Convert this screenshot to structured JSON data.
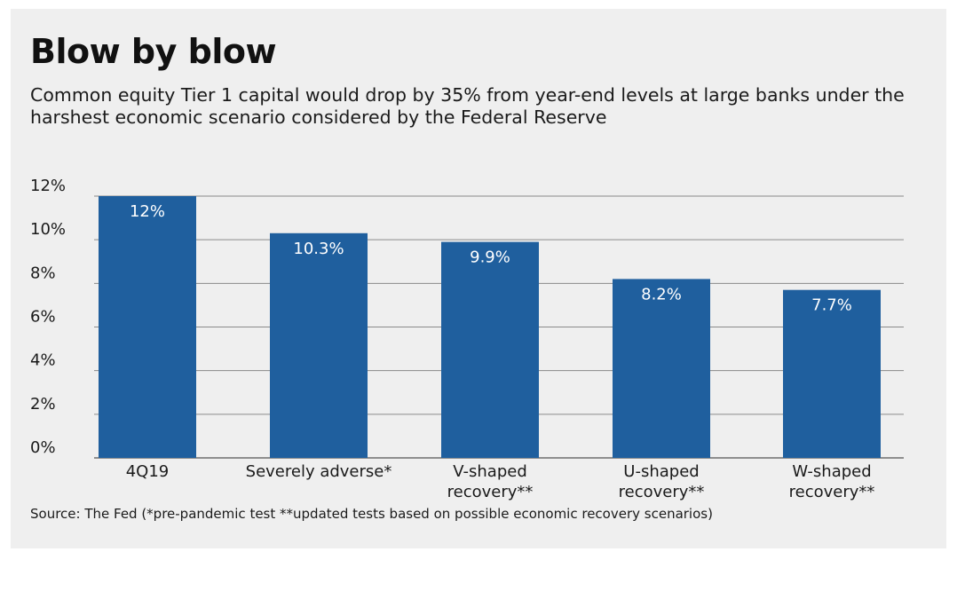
{
  "chart_data": {
    "type": "bar",
    "title": "Blow by blow",
    "subtitle": "Common equity Tier 1 capital would drop by 35% from year-end levels at large banks under the harshest economic scenario considered by the Federal Reserve",
    "categories": [
      [
        "4Q19"
      ],
      [
        "Severely adverse*"
      ],
      [
        "V-shaped",
        "recovery**"
      ],
      [
        "U-shaped",
        "recovery**"
      ],
      [
        "W-shaped",
        "recovery**"
      ]
    ],
    "values": [
      12,
      10.3,
      9.9,
      8.2,
      7.7
    ],
    "data_labels": [
      "12%",
      "10.3%",
      "9.9%",
      "8.2%",
      "7.7%"
    ],
    "ylim": [
      0,
      12
    ],
    "yticks": [
      0,
      2,
      4,
      6,
      8,
      10,
      12
    ],
    "ytick_labels": [
      "0%",
      "2%",
      "4%",
      "6%",
      "8%",
      "10%",
      "12%"
    ],
    "xlabel": "",
    "ylabel": "",
    "grid": true,
    "source": "Source: The Fed (*pre-pandemic test **updated tests based on possible economic recovery scenarios)",
    "colors": {
      "bar": "#1f5f9e",
      "grid": "#8a8a8a",
      "background": "#efefef"
    }
  }
}
